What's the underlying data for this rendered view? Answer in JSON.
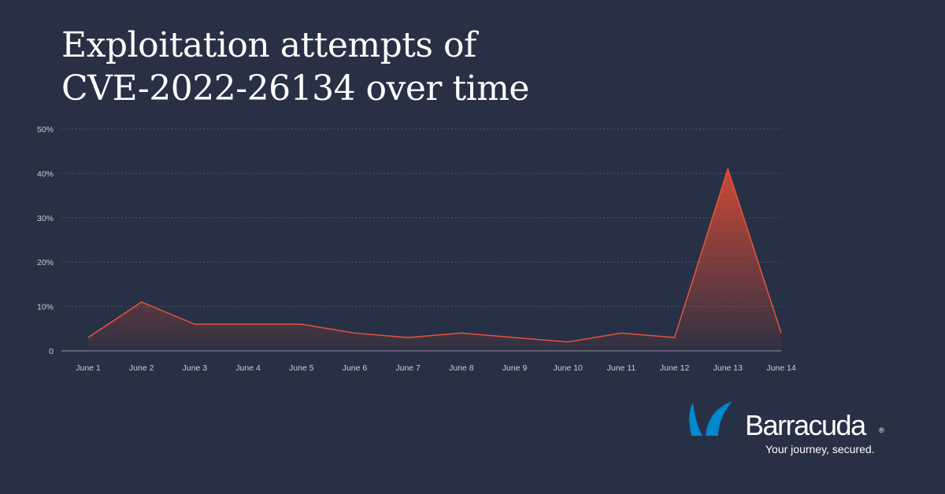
{
  "title_lines": [
    "Exploitation attempts of",
    "CVE-2022-26134 over time"
  ],
  "chart_data": {
    "type": "area",
    "title": "Exploitation attempts of CVE-2022-26134 over time",
    "xlabel": "",
    "ylabel": "",
    "categories": [
      "June 1",
      "June 2",
      "June 3",
      "June 4",
      "June 5",
      "June 6",
      "June 7",
      "June 8",
      "June 9",
      "June 10",
      "June 11",
      "June 12",
      "June 13",
      "June 14"
    ],
    "series": [
      {
        "values": [
          3,
          11,
          6,
          6,
          6,
          4,
          3,
          4,
          3,
          2,
          4,
          3,
          41,
          4
        ]
      }
    ],
    "ylim": [
      0,
      50
    ],
    "yticks": [
      0,
      10,
      20,
      30,
      40,
      50
    ],
    "ytick_labels": [
      "0",
      "10%",
      "20%",
      "30%",
      "40%",
      "50%"
    ],
    "grid": "horizontal-dotted",
    "legend": "none",
    "line_color": "#e8533b",
    "fill_color": "#d24a35"
  },
  "brand": {
    "name": "Barracuda",
    "registered": "®",
    "tagline": "Your journey, secured.",
    "logo_color": "#0088ce"
  }
}
